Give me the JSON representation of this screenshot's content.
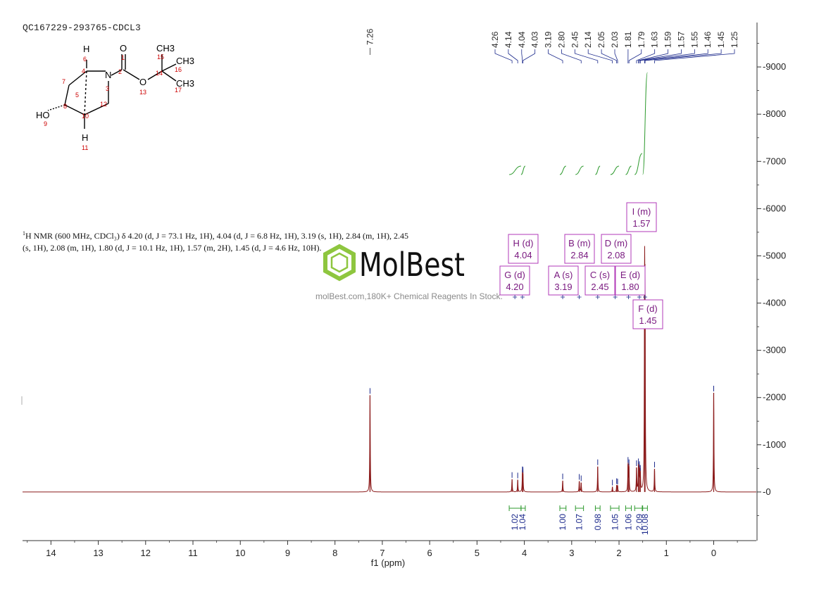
{
  "header": {
    "sample_id": "QC167229-293765-CDCL3"
  },
  "description": {
    "nucleus_sup": "1",
    "text": "H NMR (600 MHz, CDCl₃) δ 4.20 (d, J = 73.1 Hz, 1H), 4.04 (d, J = 6.8 Hz, 1H), 3.19 (s, 1H), 2.84 (m, 1H), 2.45 (s, 1H), 2.08 (m, 1H), 1.80 (d, J = 10.1 Hz, 1H), 1.57 (m, 2H), 1.45 (d, J = 4.6 Hz, 10H)."
  },
  "watermark": {
    "brand": "MolBest",
    "tagline": "molBest.com,180K+ Chemical Reagents In Stock."
  },
  "structure": {
    "atoms": [
      {
        "id": "H6",
        "label": "H"
      },
      {
        "id": "n6",
        "label": "6"
      },
      {
        "id": "O1",
        "label": "O"
      },
      {
        "id": "n1",
        "label": "1"
      },
      {
        "id": "n2",
        "label": "2"
      },
      {
        "id": "N",
        "label": "N"
      },
      {
        "id": "n3",
        "label": "3"
      },
      {
        "id": "O13",
        "label": "O"
      },
      {
        "id": "n13",
        "label": "13"
      },
      {
        "id": "n4",
        "label": "4"
      },
      {
        "id": "n5",
        "label": "5"
      },
      {
        "id": "n7",
        "label": "7"
      },
      {
        "id": "n8",
        "label": "8"
      },
      {
        "id": "n10",
        "label": "10"
      },
      {
        "id": "n12",
        "label": "12"
      },
      {
        "id": "HO",
        "label": "HO"
      },
      {
        "id": "n9",
        "label": "9"
      },
      {
        "id": "H11",
        "label": "H"
      },
      {
        "id": "n11",
        "label": "11"
      },
      {
        "id": "n14",
        "label": "14"
      },
      {
        "id": "n15",
        "label": "15"
      },
      {
        "id": "n16",
        "label": "16"
      },
      {
        "id": "n17",
        "label": "17"
      },
      {
        "id": "CH3a",
        "label": "CH3"
      },
      {
        "id": "CH3b",
        "label": "CH3"
      },
      {
        "id": "CH3c",
        "label": "CH3"
      }
    ]
  },
  "colors": {
    "spectrum": "#8b1a1a",
    "integral": "#2e9a2e",
    "peak_marker": "#1c2a8c",
    "multiplet_box": "#b23ab8",
    "axis": "#333333"
  },
  "chart_data": {
    "type": "line",
    "title": "",
    "xlabel": "f1 (ppm)",
    "ylabel": "",
    "xlim": [
      14.6,
      -0.9
    ],
    "ylim": [
      -1000,
      10000
    ],
    "x_ticks": [
      14,
      13,
      12,
      11,
      10,
      9,
      8,
      7,
      6,
      5,
      4,
      3,
      2,
      1,
      0
    ],
    "y_ticks": [
      0,
      1000,
      2000,
      3000,
      4000,
      5000,
      6000,
      7000,
      8000,
      9000
    ],
    "grid": false,
    "legend": "none",
    "series": [
      {
        "peaks": [
          {
            "ppm": 7.26,
            "height": 2050
          },
          {
            "ppm": 4.26,
            "height": 270
          },
          {
            "ppm": 4.14,
            "height": 260
          },
          {
            "ppm": 4.04,
            "height": 390
          },
          {
            "ppm": 4.03,
            "height": 380
          },
          {
            "ppm": 3.19,
            "height": 240
          },
          {
            "ppm": 2.84,
            "height": 230
          },
          {
            "ppm": 2.8,
            "height": 200
          },
          {
            "ppm": 2.45,
            "height": 540
          },
          {
            "ppm": 2.14,
            "height": 110
          },
          {
            "ppm": 2.05,
            "height": 140
          },
          {
            "ppm": 2.03,
            "height": 130
          },
          {
            "ppm": 1.81,
            "height": 590
          },
          {
            "ppm": 1.79,
            "height": 540
          },
          {
            "ppm": 1.63,
            "height": 520
          },
          {
            "ppm": 1.59,
            "height": 560
          },
          {
            "ppm": 1.57,
            "height": 500
          },
          {
            "ppm": 1.55,
            "height": 420
          },
          {
            "ppm": 1.46,
            "height": 4300
          },
          {
            "ppm": 1.45,
            "height": 3600
          },
          {
            "ppm": 1.25,
            "height": 490
          },
          {
            "ppm": 0.0,
            "height": 2100
          }
        ]
      }
    ],
    "peak_labels": [
      "7.26",
      "4.26",
      "4.14",
      "4.04",
      "4.03",
      "3.19",
      "2.80",
      "2.45",
      "2.14",
      "2.05",
      "2.03",
      "1.81",
      "1.79",
      "1.63",
      "1.59",
      "1.57",
      "1.55",
      "1.46",
      "1.45",
      "1.25"
    ],
    "integrals": [
      {
        "ppm": 4.2,
        "value": "1.02",
        "from": 4.32,
        "to": 4.07
      },
      {
        "ppm": 4.04,
        "value": "1.04",
        "from": 4.07,
        "to": 3.98
      },
      {
        "ppm": 3.19,
        "value": "1.00",
        "from": 3.25,
        "to": 3.12
      },
      {
        "ppm": 2.84,
        "value": "1.07",
        "from": 2.92,
        "to": 2.75
      },
      {
        "ppm": 2.45,
        "value": "0.98",
        "from": 2.5,
        "to": 2.4
      },
      {
        "ppm": 2.08,
        "value": "1.05",
        "from": 2.18,
        "to": 2.0
      },
      {
        "ppm": 1.8,
        "value": "1.06",
        "from": 1.86,
        "to": 1.74
      },
      {
        "ppm": 1.57,
        "value": "2.09",
        "from": 1.67,
        "to": 1.51
      },
      {
        "ppm": 1.45,
        "value": "10.08",
        "from": 1.5,
        "to": 1.4
      }
    ],
    "multiplets": [
      {
        "letter": "I",
        "type": "m",
        "ppm": "1.57"
      },
      {
        "letter": "H",
        "type": "d",
        "ppm": "4.04"
      },
      {
        "letter": "B",
        "type": "m",
        "ppm": "2.84"
      },
      {
        "letter": "D",
        "type": "m",
        "ppm": "2.08"
      },
      {
        "letter": "G",
        "type": "d",
        "ppm": "4.20"
      },
      {
        "letter": "A",
        "type": "s",
        "ppm": "3.19"
      },
      {
        "letter": "C",
        "type": "s",
        "ppm": "2.45"
      },
      {
        "letter": "E",
        "type": "d",
        "ppm": "1.80"
      },
      {
        "letter": "F",
        "type": "d",
        "ppm": "1.45"
      }
    ]
  }
}
